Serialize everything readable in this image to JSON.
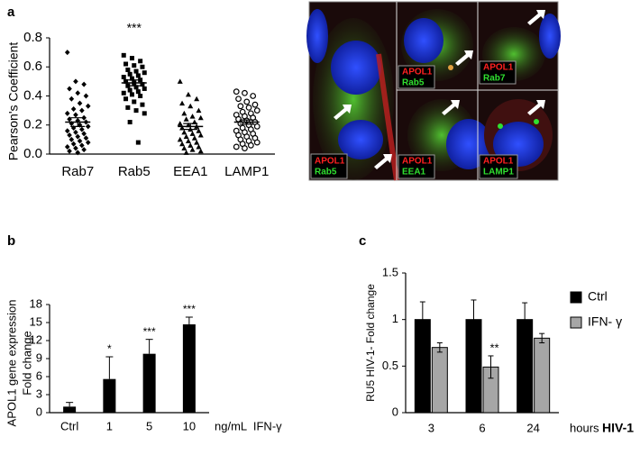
{
  "chart_data": [
    {
      "type": "strip",
      "panel": "a",
      "ylabel": "Pearson's Coefficient",
      "categories": [
        "Rab7",
        "Rab5",
        "EEA1",
        "LAMP1"
      ],
      "groups": [
        {
          "marker": "diamond",
          "mean": 0.22,
          "sem": 0.03,
          "values": [
            0.7,
            0.5,
            0.48,
            0.45,
            0.42,
            0.4,
            0.38,
            0.35,
            0.33,
            0.31,
            0.3,
            0.28,
            0.27,
            0.25,
            0.24,
            0.23,
            0.22,
            0.21,
            0.2,
            0.19,
            0.18,
            0.17,
            0.16,
            0.15,
            0.14,
            0.13,
            0.12,
            0.11,
            0.1,
            0.09,
            0.08,
            0.07,
            0.06,
            0.05,
            0.04,
            0.03,
            0.02,
            0.01
          ]
        },
        {
          "marker": "square",
          "mean": 0.49,
          "sem": 0.02,
          "values": [
            0.68,
            0.66,
            0.64,
            0.62,
            0.61,
            0.6,
            0.58,
            0.57,
            0.56,
            0.55,
            0.54,
            0.53,
            0.52,
            0.51,
            0.5,
            0.49,
            0.48,
            0.47,
            0.46,
            0.45,
            0.44,
            0.43,
            0.42,
            0.41,
            0.4,
            0.38,
            0.36,
            0.34,
            0.32,
            0.3,
            0.28,
            0.22,
            0.08
          ]
        },
        {
          "marker": "triangle",
          "mean": 0.19,
          "sem": 0.02,
          "values": [
            0.5,
            0.41,
            0.38,
            0.35,
            0.33,
            0.3,
            0.28,
            0.26,
            0.25,
            0.24,
            0.22,
            0.21,
            0.2,
            0.19,
            0.18,
            0.17,
            0.16,
            0.15,
            0.14,
            0.13,
            0.12,
            0.11,
            0.1,
            0.09,
            0.08,
            0.07,
            0.06,
            0.05,
            0.04,
            0.03,
            0.02,
            0.01
          ]
        },
        {
          "marker": "open-circle",
          "mean": 0.22,
          "sem": 0.015,
          "values": [
            0.43,
            0.42,
            0.4,
            0.38,
            0.36,
            0.34,
            0.33,
            0.32,
            0.3,
            0.29,
            0.28,
            0.27,
            0.26,
            0.25,
            0.24,
            0.23,
            0.22,
            0.21,
            0.2,
            0.19,
            0.18,
            0.17,
            0.16,
            0.15,
            0.14,
            0.13,
            0.12,
            0.11,
            0.1,
            0.09,
            0.08,
            0.07,
            0.06,
            0.05,
            0.04
          ]
        }
      ],
      "significance": [
        null,
        "***",
        null,
        null
      ],
      "ylim": [
        0,
        0.8
      ],
      "yticks": [
        {
          "value": 0,
          "label": "0.0"
        },
        0.2,
        0.4,
        0.6,
        0.8
      ],
      "color": "#000000"
    },
    {
      "type": "bar",
      "panel": "b",
      "ylabel": [
        "APOL1  gene expression",
        "Fold change"
      ],
      "xlabel": "ng/mL  IFN-γ",
      "categories": [
        "Ctrl",
        "1",
        "5",
        "10"
      ],
      "values": [
        1,
        5.6,
        9.8,
        14.7
      ],
      "errors": [
        0.7,
        3.7,
        2.4,
        1.2
      ],
      "significance": [
        null,
        "*",
        "***",
        "***"
      ],
      "color": "#000000",
      "ylim": [
        0,
        18
      ],
      "yticks": [
        0,
        3,
        6,
        9,
        12,
        15,
        18
      ]
    },
    {
      "type": "grouped",
      "panel": "c",
      "ylabel": "RU5 HIV-1- Fold change",
      "xlabel": "hours",
      "xlabel_emphasis": "HIV-1",
      "categories": [
        "3",
        "6",
        "24"
      ],
      "series": [
        {
          "name": "Ctrl",
          "color": "#000000",
          "values": [
            1,
            1,
            1
          ],
          "errors": [
            0.19,
            0.21,
            0.18
          ],
          "significance": [
            null,
            null,
            null
          ]
        },
        {
          "name": "IFN- γ",
          "color": "#a6a6a6",
          "values": [
            0.7,
            0.49,
            0.8
          ],
          "errors": [
            0.05,
            0.12,
            0.05
          ],
          "significance": [
            null,
            "**",
            null
          ]
        }
      ],
      "ylim": [
        0,
        1.5
      ],
      "yticks": [
        0,
        0.5,
        1,
        1.5
      ],
      "legend": "right"
    }
  ],
  "micrograph": {
    "panels": [
      {
        "stain": "APOL1",
        "marker": "Rab5"
      },
      {
        "stain": "APOL1",
        "marker": "Rab5"
      },
      {
        "stain": "APOL1",
        "marker": "Rab7"
      },
      {
        "stain": "APOL1",
        "marker": "EEA1"
      },
      {
        "stain": "APOL1",
        "marker": "LAMP1"
      }
    ]
  }
}
